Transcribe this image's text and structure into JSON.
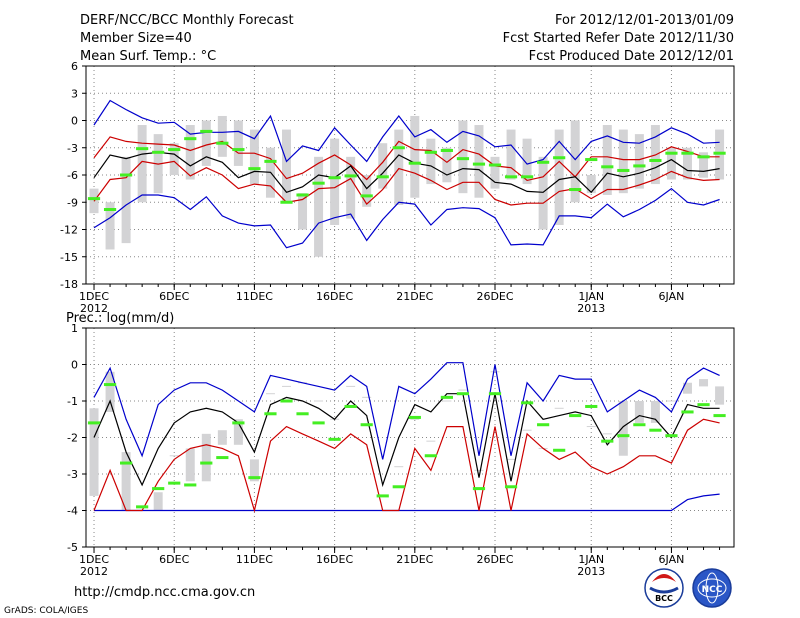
{
  "header": {
    "title": "DERF/NCC/BCC Monthly Forecast",
    "member": "Member Size=40",
    "variable": "Mean Surf. Temp.: °C",
    "period": "For 2012/12/01-2013/01/09",
    "started": "Fcst Started Refer Date 2012/11/30",
    "produced": "Fcst Produced Date 2012/12/01"
  },
  "footer": {
    "url": "http://cmdp.ncc.cma.gov.cn",
    "grads": "GrADS: COLA/IGES",
    "logo_left": "BCC",
    "logo_right": "NCC"
  },
  "colors": {
    "box": "#d3d3d5",
    "median": "#44ee22",
    "envelope": "#0000cc",
    "spread": "#cc0000",
    "mean": "#000000",
    "grid": "#888888"
  },
  "chart_data": [
    {
      "type": "box",
      "ylabel": "Mean Surf. Temp.: °C",
      "ylim": [
        -18,
        6
      ],
      "yticks": [
        -18,
        -15,
        -12,
        -9,
        -6,
        -3,
        0,
        3,
        6
      ],
      "x": [
        1,
        2,
        3,
        4,
        5,
        6,
        7,
        8,
        9,
        10,
        11,
        12,
        13,
        14,
        15,
        16,
        17,
        18,
        19,
        20,
        21,
        22,
        23,
        24,
        25,
        26,
        27,
        28,
        29,
        30,
        31,
        32,
        33,
        34,
        35,
        36,
        37,
        38,
        39,
        40
      ],
      "xlim": [
        0.5,
        40.9
      ],
      "xticks": [
        {
          "x": 1,
          "label": "1DEC",
          "sub": "2012"
        },
        {
          "x": 6,
          "label": "6DEC",
          "sub": ""
        },
        {
          "x": 11,
          "label": "11DEC",
          "sub": ""
        },
        {
          "x": 16,
          "label": "16DEC",
          "sub": ""
        },
        {
          "x": 21,
          "label": "21DEC",
          "sub": ""
        },
        {
          "x": 26,
          "label": "26DEC",
          "sub": ""
        },
        {
          "x": 32,
          "label": "1JAN",
          "sub": "2013"
        },
        {
          "x": 37,
          "label": "6JAN",
          "sub": ""
        }
      ],
      "box_low": [
        -10.2,
        -14.2,
        -13.5,
        -9,
        -8,
        -6,
        -6.5,
        -5,
        -4,
        -5,
        -7,
        -8.5,
        -9,
        -12,
        -15,
        -11.5,
        -10.8,
        -9.5,
        -7.5,
        -9.3,
        -8.5,
        -7,
        -6.8,
        -8,
        -8.5,
        -7.5,
        -6.5,
        -7,
        -12,
        -11.5,
        -9,
        -8,
        -8.2,
        -8,
        -7.5,
        -7,
        -6.5,
        -6.5,
        -6.3,
        -6.5
      ],
      "box_high": [
        -7.5,
        -9,
        -4,
        -0.5,
        -1.5,
        -2.5,
        -0.5,
        0,
        0.5,
        0,
        -1,
        -3,
        -1,
        -8,
        -4,
        -2,
        -4,
        -6,
        -2.5,
        -1,
        0.5,
        -2,
        -3,
        0,
        -0.5,
        -4,
        -1,
        -2,
        -4,
        -1,
        0,
        -6,
        -0.5,
        -1,
        -1.5,
        -0.5,
        -3,
        -3,
        -3.5,
        -1
      ],
      "median": [
        -8.6,
        -9.8,
        -6,
        -3.1,
        -3.5,
        -3.2,
        -2,
        -1.2,
        -2.5,
        -3.2,
        -5.3,
        -4.5,
        -9,
        -8.2,
        -6.9,
        -6.3,
        -6.1,
        -8.3,
        -6.2,
        -3,
        -4.7,
        -3.5,
        -3.3,
        -4.2,
        -4.8,
        -4.9,
        -6.2,
        -6.2,
        -4.6,
        -4.1,
        -7.6,
        -4.3,
        -5.1,
        -5.5,
        -5,
        -4.4,
        -3.6,
        -3.6,
        -4,
        -3.6
      ],
      "ens_max": [
        -0.5,
        2.2,
        1.2,
        0.3,
        -0.3,
        -0.2,
        -1.5,
        -1.3,
        -1.3,
        -1.2,
        -2,
        0.5,
        -4.5,
        -2.8,
        -3.3,
        -0.8,
        -2.7,
        -4.5,
        -1.8,
        0.5,
        -1.8,
        -1,
        -2.4,
        -1.2,
        -1.7,
        -2.9,
        -2.7,
        -4.8,
        -4.3,
        -2.3,
        -4.3,
        -2.3,
        -1.7,
        -2.4,
        -2.5,
        -1.8,
        -0.8,
        -1.5,
        -2.5,
        -2.4
      ],
      "upper": [
        -4.1,
        -1.8,
        -2.3,
        -2.5,
        -2.6,
        -2.7,
        -3.3,
        -2.7,
        -2.3,
        -3.6,
        -3.6,
        -4.2,
        -6.4,
        -5.8,
        -4.7,
        -3.8,
        -4.9,
        -6.5,
        -4.6,
        -2.3,
        -3.2,
        -3.3,
        -4.6,
        -3.2,
        -3.7,
        -5,
        -5.2,
        -6.6,
        -6.2,
        -4.5,
        -6.2,
        -4,
        -4,
        -4.3,
        -4.3,
        -3.8,
        -2.9,
        -3.4,
        -4,
        -4
      ],
      "mean": [
        -6.3,
        -3.8,
        -4.2,
        -3.7,
        -3.5,
        -3.7,
        -5,
        -4,
        -4.6,
        -6.3,
        -5.6,
        -5.7,
        -7.9,
        -7.3,
        -6,
        -6.3,
        -5,
        -7.5,
        -5.8,
        -3.8,
        -4.7,
        -5,
        -6,
        -5.3,
        -5.4,
        -6.8,
        -7,
        -7.8,
        -7.9,
        -6.5,
        -6.2,
        -7.9,
        -5.8,
        -6.2,
        -5.8,
        -5.2,
        -4.3,
        -5.5,
        -5.6,
        -5.3
      ],
      "lower": [
        -8.9,
        -6.5,
        -6.3,
        -4.5,
        -4.8,
        -4.5,
        -6.1,
        -5.2,
        -6,
        -7.5,
        -7,
        -7.2,
        -9,
        -8.7,
        -7.5,
        -7.4,
        -6.4,
        -9.2,
        -7.6,
        -5.3,
        -5.8,
        -6.6,
        -7.6,
        -6.8,
        -6.8,
        -8.7,
        -9.3,
        -9.1,
        -9.1,
        -7.8,
        -7.5,
        -8.6,
        -7.6,
        -7.6,
        -7.1,
        -6.5,
        -5.6,
        -6.3,
        -6.6,
        -6.5
      ],
      "ens_min": [
        -11.8,
        -10.7,
        -9.3,
        -8.2,
        -8.2,
        -8.5,
        -9.8,
        -8.4,
        -10.5,
        -11.3,
        -11.6,
        -11.5,
        -14,
        -13.5,
        -11.3,
        -10.7,
        -10.3,
        -13.2,
        -10.9,
        -9,
        -9.2,
        -11.5,
        -9.8,
        -9.6,
        -9.7,
        -10.7,
        -13.7,
        -13.6,
        -13.7,
        -10.5,
        -10.5,
        -10.7,
        -9.2,
        -10.6,
        -9.8,
        -8.8,
        -7.5,
        -9,
        -9.3,
        -8.7
      ]
    },
    {
      "type": "box",
      "ylabel": "Prec.: log(mm/d)",
      "ylim": [
        -5,
        1
      ],
      "yticks": [
        -5,
        -4,
        -3,
        -2,
        -1,
        0,
        1
      ],
      "x": [
        1,
        2,
        3,
        4,
        5,
        6,
        7,
        8,
        9,
        10,
        11,
        12,
        13,
        14,
        15,
        16,
        17,
        18,
        19,
        20,
        21,
        22,
        23,
        24,
        25,
        26,
        27,
        28,
        29,
        30,
        31,
        32,
        33,
        34,
        35,
        36,
        37,
        38,
        39,
        40
      ],
      "xlim": [
        0.5,
        40.9
      ],
      "xticks": [
        {
          "x": 1,
          "label": "1DEC",
          "sub": "2012"
        },
        {
          "x": 6,
          "label": "6DEC",
          "sub": ""
        },
        {
          "x": 11,
          "label": "11DEC",
          "sub": ""
        },
        {
          "x": 16,
          "label": "16DEC",
          "sub": ""
        },
        {
          "x": 21,
          "label": "21DEC",
          "sub": ""
        },
        {
          "x": 26,
          "label": "26DEC",
          "sub": ""
        },
        {
          "x": 32,
          "label": "1JAN",
          "sub": "2013"
        },
        {
          "x": 37,
          "label": "6JAN",
          "sub": ""
        }
      ],
      "box_low": [
        -3.6,
        -1.3,
        -4,
        -4,
        -4,
        -2.5,
        -3.2,
        -3.2,
        -2.2,
        -2.2,
        -3.2,
        -0.8,
        -0.6,
        -0.5,
        -1,
        -1.5,
        -0.6,
        -0.9,
        -3.6,
        -2.8,
        -1.5,
        -2.1,
        -1,
        -0.7,
        -2.9,
        -0.2,
        -2.6,
        -1.8,
        -2.3,
        -1.2,
        -1.4,
        -1.7,
        -1.9,
        -2.5,
        -1.6,
        -1.6,
        -1,
        -0.8,
        -0.6,
        -1.1
      ],
      "box_high": [
        -1.2,
        -0.2,
        -2.4,
        -4,
        -3.5,
        -2.5,
        -2.3,
        -1.9,
        -1.8,
        -1.5,
        -2.6,
        -0.8,
        -0.6,
        -0.5,
        -1,
        -1.5,
        -0.6,
        -0.9,
        -3.6,
        -2.8,
        -1.5,
        -2.1,
        -1,
        -0.7,
        -2.9,
        -0.2,
        -2.6,
        -1.8,
        -2.3,
        -1.2,
        -1.4,
        -1.7,
        -1.9,
        -1,
        -1,
        -1,
        -1,
        -0.5,
        -0.4,
        -0.6
      ],
      "median": [
        -1.6,
        -0.55,
        -2.7,
        -3.9,
        -3.4,
        -3.25,
        -3.3,
        -2.7,
        -2.55,
        -1.6,
        -3.1,
        -1.35,
        -1,
        -1.35,
        -1.6,
        -2.05,
        -1.15,
        -1.65,
        -3.6,
        -3.35,
        -1.45,
        -2.5,
        -0.9,
        -0.8,
        -3.4,
        -0.8,
        -3.35,
        -1.05,
        -1.65,
        -2.35,
        -1.4,
        -1.15,
        -2.1,
        -1.95,
        -1.65,
        -1.8,
        -1.95,
        -1.3,
        -1.1,
        -1.4
      ],
      "ens_max": [
        -0.9,
        -0.1,
        -1.5,
        -2.5,
        -1.1,
        -0.7,
        -0.5,
        -0.5,
        -0.7,
        -1,
        -1.3,
        -0.3,
        -0.4,
        -0.5,
        -0.6,
        -0.7,
        -0.3,
        -0.6,
        -2.6,
        -0.6,
        -0.8,
        -0.4,
        0.05,
        0.05,
        -2.5,
        0,
        -2.5,
        -0.5,
        -1,
        -0.3,
        -0.4,
        -0.4,
        -1.3,
        -1,
        -0.7,
        -0.9,
        -1.3,
        -0.4,
        -0.1,
        -0.3
      ],
      "mean": [
        -2,
        -1,
        -2.4,
        -3.3,
        -2.3,
        -1.6,
        -1.3,
        -1.2,
        -1.3,
        -1.6,
        -2.4,
        -1.1,
        -0.9,
        -1,
        -1.2,
        -1.5,
        -1,
        -1.4,
        -3.3,
        -2,
        -1.1,
        -1.3,
        -0.8,
        -0.8,
        -3.1,
        -0.8,
        -3.2,
        -1,
        -1.5,
        -1.4,
        -1.3,
        -1.4,
        -2.2,
        -1.7,
        -1.4,
        -1.5,
        -2,
        -1.1,
        -1.2,
        -1.2
      ],
      "lower": [
        -4,
        -2.9,
        -4,
        -4,
        -3.2,
        -2.6,
        -2.3,
        -2.2,
        -2.3,
        -2.5,
        -4,
        -2.1,
        -1.7,
        -1.9,
        -2.1,
        -2.3,
        -1.9,
        -2.2,
        -4,
        -4,
        -2.3,
        -2.9,
        -1.7,
        -1.7,
        -4,
        -1.7,
        -4,
        -1.9,
        -2.3,
        -2.6,
        -2.4,
        -2.8,
        -3,
        -2.8,
        -2.5,
        -2.5,
        -2.7,
        -1.8,
        -1.5,
        -1.6
      ],
      "ens_min": [
        -4,
        -4,
        -4,
        -4,
        -4,
        -4,
        -4,
        -4,
        -4,
        -4,
        -4,
        -4,
        -4,
        -4,
        -4,
        -4,
        -4,
        -4,
        -4,
        -4,
        -4,
        -4,
        -4,
        -4,
        -4,
        -4,
        -4,
        -4,
        -4,
        -4,
        -4,
        -4,
        -4,
        -4,
        -4,
        -4,
        -4,
        -3.7,
        -3.6,
        -3.55
      ]
    }
  ]
}
